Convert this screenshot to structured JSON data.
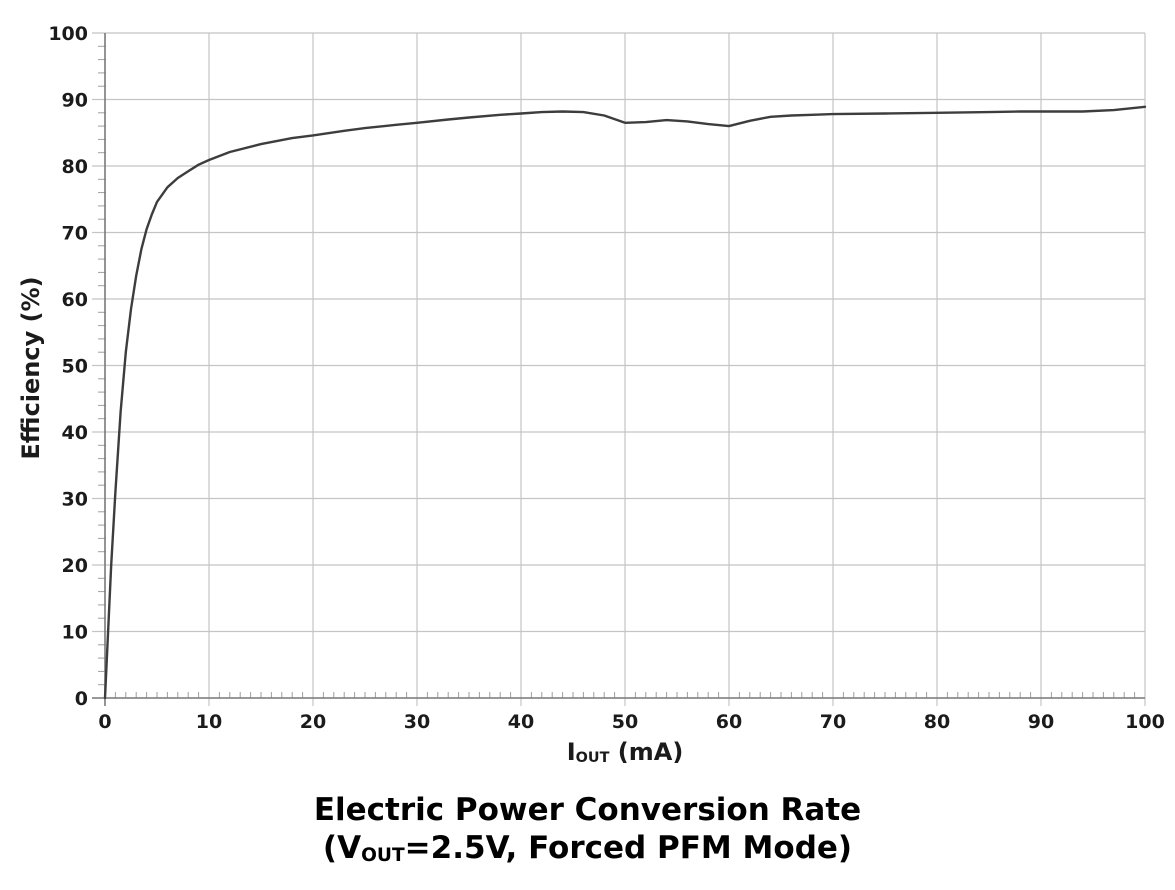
{
  "chart_data": {
    "type": "line",
    "title": "Electric Power Conversion Rate",
    "subtitle_parts": {
      "pre": "(V",
      "sub": "OUT",
      "post": "=2.5V, Forced PFM Mode)"
    },
    "xlabel_parts": {
      "pre": "I",
      "sub": "OUT",
      "post": " (mA)"
    },
    "ylabel": "Efficiency (%)",
    "xlim": [
      0,
      100
    ],
    "ylim": [
      0,
      100
    ],
    "grid": true,
    "x_ticks": [
      0,
      10,
      20,
      30,
      40,
      50,
      60,
      70,
      80,
      90,
      100
    ],
    "y_ticks": [
      0,
      10,
      20,
      30,
      40,
      50,
      60,
      70,
      80,
      90,
      100
    ],
    "x_minor_step": 1,
    "y_minor_step": 2,
    "series": [
      {
        "name": "Efficiency",
        "color": "#3d3d3d",
        "points": [
          [
            0,
            0
          ],
          [
            0.3,
            10
          ],
          [
            0.6,
            20
          ],
          [
            1,
            31
          ],
          [
            1.5,
            43
          ],
          [
            2,
            52
          ],
          [
            2.5,
            58.5
          ],
          [
            3,
            63.5
          ],
          [
            3.5,
            67.5
          ],
          [
            4,
            70.5
          ],
          [
            4.5,
            72.7
          ],
          [
            5,
            74.6
          ],
          [
            6,
            76.8
          ],
          [
            7,
            78.2
          ],
          [
            8,
            79.2
          ],
          [
            9,
            80.2
          ],
          [
            10,
            80.9
          ],
          [
            12,
            82.1
          ],
          [
            15,
            83.3
          ],
          [
            18,
            84.2
          ],
          [
            20,
            84.6
          ],
          [
            23,
            85.3
          ],
          [
            25,
            85.7
          ],
          [
            28,
            86.2
          ],
          [
            30,
            86.5
          ],
          [
            33,
            87.0
          ],
          [
            35,
            87.3
          ],
          [
            38,
            87.7
          ],
          [
            40,
            87.9
          ],
          [
            42,
            88.1
          ],
          [
            44,
            88.2
          ],
          [
            46,
            88.1
          ],
          [
            48,
            87.6
          ],
          [
            50,
            86.5
          ],
          [
            52,
            86.6
          ],
          [
            54,
            86.9
          ],
          [
            56,
            86.7
          ],
          [
            58,
            86.3
          ],
          [
            60,
            86.0
          ],
          [
            62,
            86.8
          ],
          [
            64,
            87.4
          ],
          [
            66,
            87.6
          ],
          [
            68,
            87.7
          ],
          [
            70,
            87.8
          ],
          [
            75,
            87.9
          ],
          [
            80,
            88.0
          ],
          [
            85,
            88.1
          ],
          [
            88,
            88.2
          ],
          [
            91,
            88.2
          ],
          [
            94,
            88.2
          ],
          [
            97,
            88.4
          ],
          [
            100,
            88.9
          ]
        ]
      }
    ],
    "colors": {
      "grid": "#c4c4c4",
      "axis": "#7a7a7a",
      "minor_tick": "#9e9e9e",
      "tick_label": "#1b1b1b",
      "title": "#000000",
      "background": "#ffffff"
    }
  }
}
